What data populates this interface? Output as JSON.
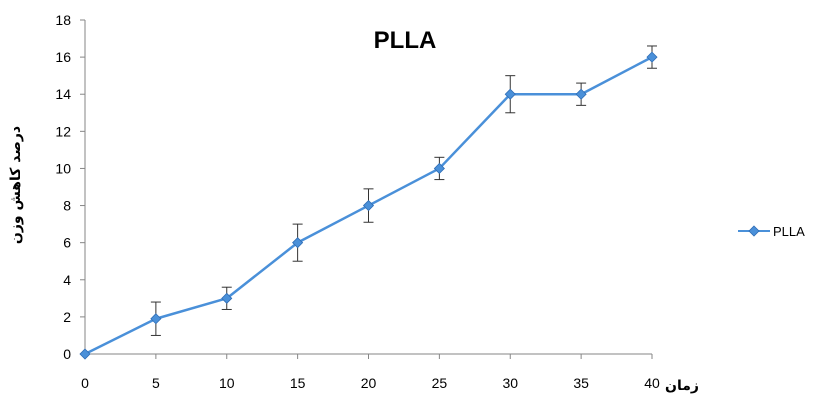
{
  "chart_data": {
    "type": "line",
    "title": "PLLA",
    "xlabel": "زمان",
    "ylabel": "درصد کاهش وزن",
    "x": [
      0,
      5,
      10,
      15,
      20,
      25,
      30,
      35,
      40
    ],
    "xticks": [
      "0",
      "5",
      "10",
      "15",
      "20",
      "25",
      "30",
      "35",
      "40"
    ],
    "yticks": [
      "0",
      "2",
      "4",
      "6",
      "8",
      "10",
      "12",
      "14",
      "16",
      "18"
    ],
    "xlim": [
      0,
      40
    ],
    "ylim": [
      0,
      18
    ],
    "grid": false,
    "legend_position": "right",
    "series": [
      {
        "name": "PLLA",
        "color": "#4A90D9",
        "values": [
          0,
          1.9,
          3.0,
          6.0,
          8.0,
          10.0,
          14.0,
          14.0,
          16.0
        ],
        "errors": [
          0,
          0.9,
          0.6,
          1.0,
          0.9,
          0.6,
          1.0,
          0.6,
          0.6
        ]
      }
    ]
  }
}
